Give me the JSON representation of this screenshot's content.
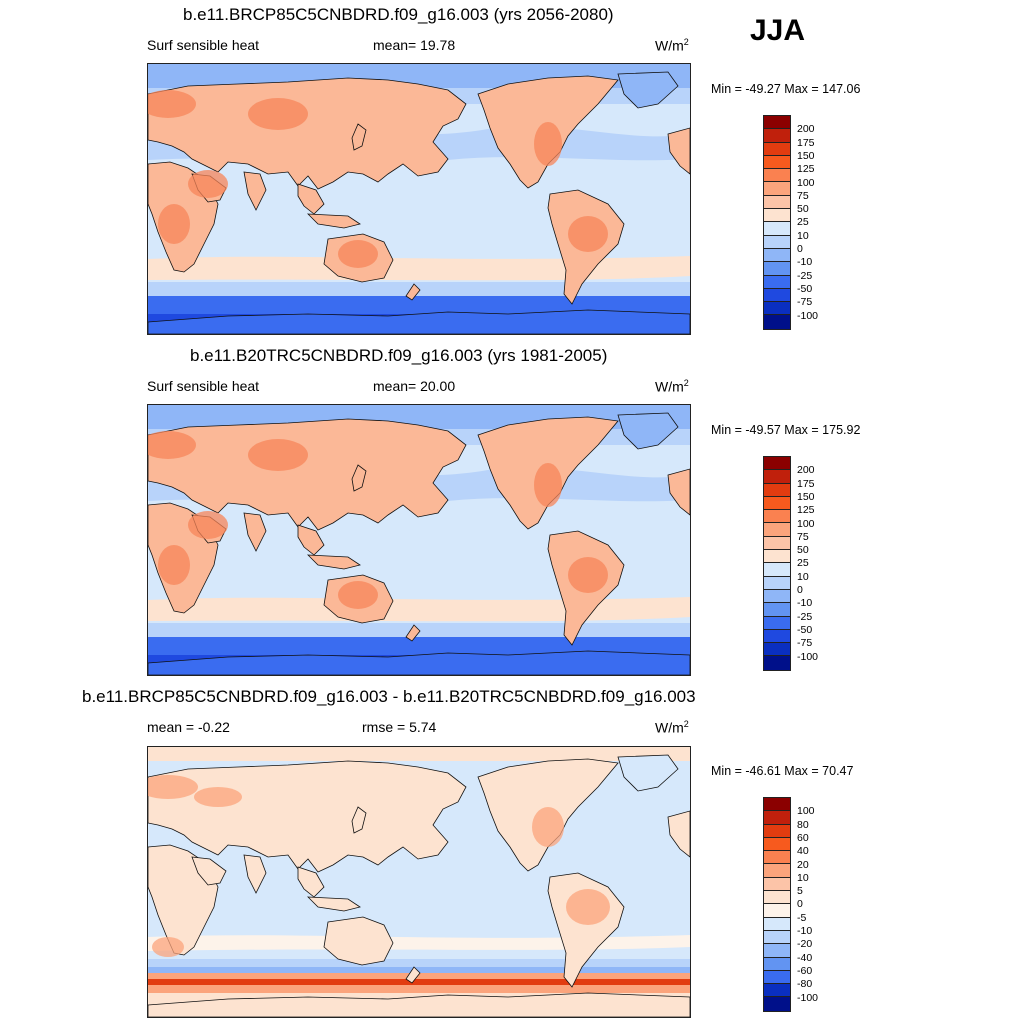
{
  "season": "JJA",
  "panels": [
    {
      "title": "b.e11.BRCP85C5CNBDRD.f09_g16.003 (yrs 2056-2080)",
      "left_label": "Surf sensible heat",
      "center_label": "mean=  19.78",
      "units": "W/m",
      "units_sup": "2",
      "minmax": "Min = -49.27 Max = 147.06",
      "levels": [
        "200",
        "175",
        "150",
        "125",
        "100",
        "75",
        "50",
        "25",
        "10",
        "0",
        "-10",
        "-25",
        "-50",
        "-75",
        "-100"
      ],
      "colors": [
        "#8b0000",
        "#c0200c",
        "#e23c10",
        "#f75a1e",
        "#fa8150",
        "#fba47c",
        "#fcc4a8",
        "#fde3d0",
        "#d6e8fb",
        "#b8d3fa",
        "#8fb6f7",
        "#6294f2",
        "#3a6cf0",
        "#1f49e0",
        "#0a2fc0",
        "#00108a"
      ]
    },
    {
      "title": "b.e11.B20TRC5CNBDRD.f09_g16.003 (yrs 1981-2005)",
      "left_label": "Surf sensible heat",
      "center_label": "mean=  20.00",
      "units": "W/m",
      "units_sup": "2",
      "minmax": "Min = -49.57 Max = 175.92",
      "levels": [
        "200",
        "175",
        "150",
        "125",
        "100",
        "75",
        "50",
        "25",
        "10",
        "0",
        "-10",
        "-25",
        "-50",
        "-75",
        "-100"
      ],
      "colors": [
        "#8b0000",
        "#c0200c",
        "#e23c10",
        "#f75a1e",
        "#fa8150",
        "#fba47c",
        "#fcc4a8",
        "#fde3d0",
        "#d6e8fb",
        "#b8d3fa",
        "#8fb6f7",
        "#6294f2",
        "#3a6cf0",
        "#1f49e0",
        "#0a2fc0",
        "#00108a"
      ]
    },
    {
      "title": "b.e11.BRCP85C5CNBDRD.f09_g16.003 - b.e11.B20TRC5CNBDRD.f09_g16.003",
      "left_label": "mean =  -0.22",
      "center_label": "rmse =   5.74",
      "units": "W/m",
      "units_sup": "2",
      "minmax": "Min = -46.61 Max =  70.47",
      "levels": [
        "100",
        "80",
        "60",
        "40",
        "20",
        "10",
        "5",
        "0",
        "-5",
        "-10",
        "-20",
        "-40",
        "-60",
        "-80",
        "-100"
      ],
      "colors": [
        "#8b0000",
        "#c0200c",
        "#e23c10",
        "#f75a1e",
        "#fa8150",
        "#fba47c",
        "#fcc4a8",
        "#fde3d0",
        "#fdf3ea",
        "#d6e8fb",
        "#b8d3fa",
        "#8fb6f7",
        "#6294f2",
        "#3a6cf0",
        "#0a2fc0",
        "#00108a"
      ]
    }
  ]
}
